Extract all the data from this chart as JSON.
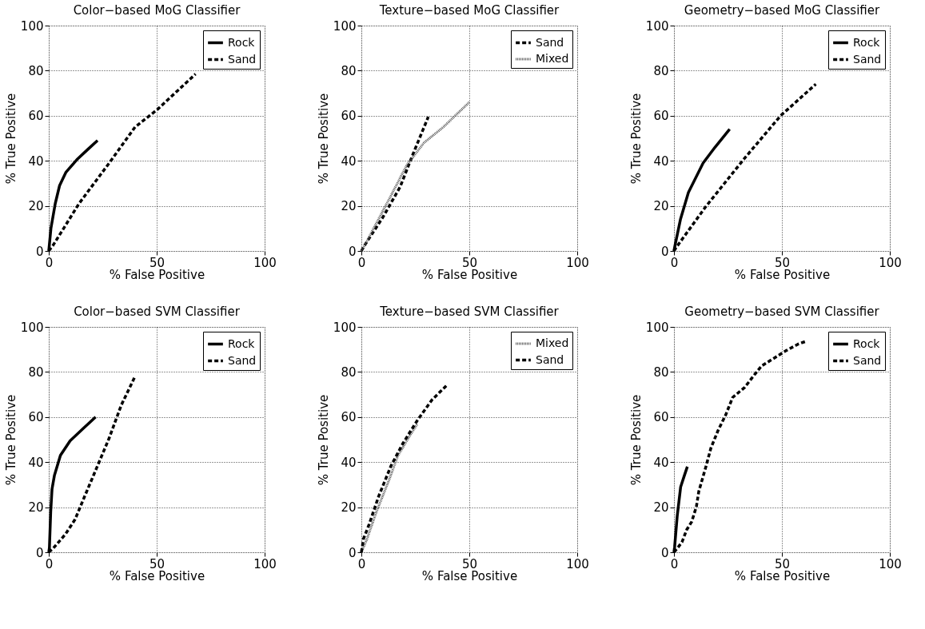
{
  "chart_data": [
    {
      "type": "line",
      "title": "Color−based MoG Classifier",
      "xlabel": "% False Positive",
      "ylabel": "% True Positive",
      "xlim": [
        0,
        100
      ],
      "ylim": [
        0,
        100
      ],
      "xticks": [
        0,
        50,
        100
      ],
      "yticks": [
        0,
        20,
        40,
        60,
        80,
        100
      ],
      "grid": true,
      "legend": "top right",
      "series": [
        {
          "name": "Rock",
          "color": "#000000",
          "line_style": "solid",
          "x": [
            0,
            1,
            3,
            5,
            8,
            13,
            18,
            22.6
          ],
          "values": [
            0,
            10,
            21,
            29,
            35,
            40.5,
            45,
            49
          ]
        },
        {
          "name": "Sand",
          "color": "#000000",
          "line_style": "dashed",
          "x": [
            0,
            2,
            14,
            28,
            40,
            50,
            68
          ],
          "values": [
            0,
            2.5,
            21,
            39,
            55,
            62.5,
            78.5
          ]
        }
      ]
    },
    {
      "type": "line",
      "title": "Texture−based MoG Classifier",
      "xlabel": "% False Positive",
      "ylabel": "% True Positive",
      "xlim": [
        0,
        100
      ],
      "ylim": [
        0,
        100
      ],
      "xticks": [
        0,
        50,
        100
      ],
      "yticks": [
        0,
        20,
        40,
        60,
        80,
        100
      ],
      "grid": true,
      "legend": "top right",
      "series": [
        {
          "name": "Sand",
          "color": "#000000",
          "line_style": "dashed",
          "x": [
            0,
            1.5,
            10,
            18,
            23.5,
            31
          ],
          "values": [
            0,
            2.5,
            15,
            28.5,
            42,
            59.5
          ]
        },
        {
          "name": "Mixed",
          "color": "#555555",
          "line_style": "dotted",
          "x": [
            0,
            1,
            14.5,
            21,
            29,
            38,
            50
          ],
          "values": [
            0,
            1.5,
            26,
            38,
            48,
            55,
            66
          ]
        }
      ]
    },
    {
      "type": "line",
      "title": "Geometry−based MoG Classifier",
      "xlabel": "% False Positive",
      "ylabel": "% True Positive",
      "xlim": [
        0,
        100
      ],
      "ylim": [
        0,
        100
      ],
      "xticks": [
        0,
        50,
        100
      ],
      "yticks": [
        0,
        20,
        40,
        60,
        80,
        100
      ],
      "grid": true,
      "legend": "top right",
      "series": [
        {
          "name": "Rock",
          "color": "#000000",
          "line_style": "solid",
          "x": [
            0,
            0.5,
            3,
            6.7,
            13.5,
            19,
            25.8
          ],
          "values": [
            0,
            2.5,
            14,
            26,
            39,
            46,
            54
          ]
        },
        {
          "name": "Sand",
          "color": "#000000",
          "line_style": "dashed",
          "x": [
            0,
            1,
            14.6,
            32.6,
            49.4,
            65.7
          ],
          "values": [
            0,
            1.5,
            19.5,
            41,
            60,
            74
          ]
        }
      ]
    },
    {
      "type": "line",
      "title": "Color−based SVM Classifier",
      "xlabel": "% False Positive",
      "ylabel": "% True Positive",
      "xlim": [
        0,
        100
      ],
      "ylim": [
        0,
        100
      ],
      "xticks": [
        0,
        50,
        100
      ],
      "yticks": [
        0,
        20,
        40,
        60,
        80,
        100
      ],
      "grid": true,
      "legend": "top right",
      "series": [
        {
          "name": "Rock",
          "color": "#000000",
          "line_style": "solid",
          "x": [
            0,
            0.3,
            0.9,
            1.5,
            2.6,
            5.4,
            9.9,
            15.5,
            21.7
          ],
          "values": [
            0,
            2,
            18,
            28,
            34,
            43,
            49.5,
            54.5,
            60
          ]
        },
        {
          "name": "Sand",
          "color": "#000000",
          "line_style": "dashed",
          "x": [
            0,
            2,
            7.7,
            12.2,
            16.7,
            22.3,
            28,
            33.6,
            39.8
          ],
          "values": [
            0,
            1.7,
            8,
            14.6,
            25,
            37.7,
            50.7,
            65.3,
            77.7
          ]
        }
      ]
    },
    {
      "type": "line",
      "title": "Texture−based SVM Classifier",
      "xlabel": "% False Positive",
      "ylabel": "% True Positive",
      "xlim": [
        0,
        100
      ],
      "ylim": [
        0,
        100
      ],
      "xticks": [
        0,
        50,
        100
      ],
      "yticks": [
        0,
        20,
        40,
        60,
        80,
        100
      ],
      "grid": true,
      "legend": "top right",
      "series": [
        {
          "name": "Mixed",
          "color": "#555555",
          "line_style": "dotted",
          "x": [
            0,
            2.5,
            7,
            12.6,
            17,
            22,
            26
          ],
          "values": [
            0,
            5.6,
            18,
            31.5,
            43,
            51,
            57
          ]
        },
        {
          "name": "Sand",
          "color": "#000000",
          "line_style": "dashed",
          "x": [
            0,
            1,
            3.6,
            8,
            13.7,
            19.3,
            26,
            32.7,
            39.8
          ],
          "values": [
            0,
            6,
            12.4,
            24.8,
            38.3,
            48.4,
            58.6,
            67.6,
            74.3
          ]
        }
      ]
    },
    {
      "type": "line",
      "title": "Geometry−based SVM Classifier",
      "xlabel": "% False Positive",
      "ylabel": "% True Positive",
      "xlim": [
        0,
        100
      ],
      "ylim": [
        0,
        100
      ],
      "xticks": [
        0,
        50,
        100
      ],
      "yticks": [
        0,
        20,
        40,
        60,
        80,
        100
      ],
      "grid": true,
      "legend": "top right",
      "series": [
        {
          "name": "Rock",
          "color": "#000000",
          "line_style": "solid",
          "x": [
            0,
            0.3,
            1.5,
            3.1,
            4.8,
            6.2
          ],
          "values": [
            0,
            2.3,
            16,
            29,
            34,
            38
          ]
        },
        {
          "name": "Sand",
          "color": "#000000",
          "line_style": "dashed",
          "x": [
            0,
            1.5,
            3.7,
            5.9,
            8.2,
            10.4,
            11.5,
            14.9,
            17.1,
            20.4,
            23.9,
            27.2,
            32.8,
            37.3,
            40.6,
            46.2,
            51.8,
            57.4,
            61.4
          ],
          "values": [
            0,
            1.7,
            4.5,
            10,
            13.5,
            20.3,
            27,
            38.3,
            46.2,
            54,
            60.8,
            68.7,
            73.2,
            78.8,
            82.7,
            86,
            89.4,
            92.3,
            93.7
          ]
        }
      ]
    }
  ]
}
